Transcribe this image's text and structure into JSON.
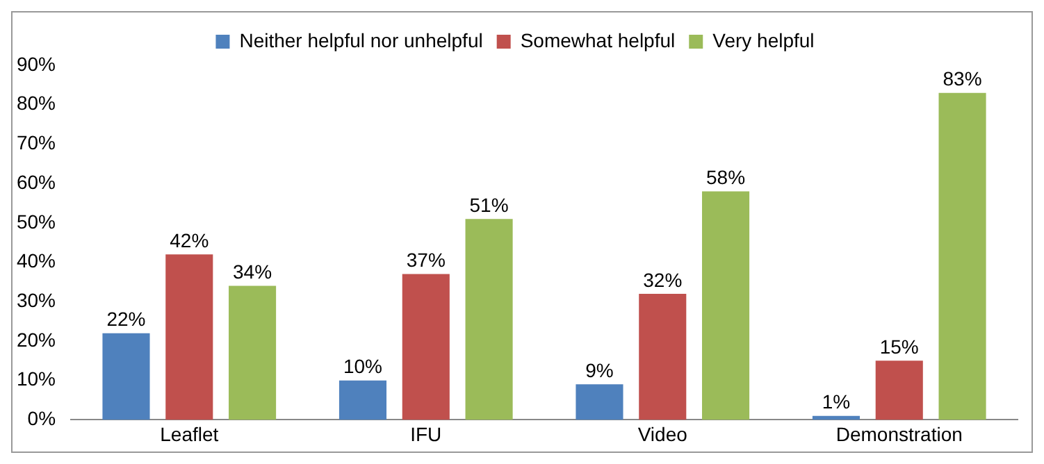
{
  "chart_data": {
    "type": "bar",
    "categories": [
      "Leaflet",
      "IFU",
      "Video",
      "Demonstration"
    ],
    "series": [
      {
        "name": "Neither helpful nor unhelpful",
        "color": "#4f81bd",
        "values": [
          22,
          10,
          9,
          1
        ],
        "value_labels": [
          "22%",
          "10%",
          "9%",
          "1%"
        ]
      },
      {
        "name": "Somewhat helpful",
        "color": "#c0504d",
        "values": [
          42,
          37,
          32,
          15
        ],
        "value_labels": [
          "42%",
          "37%",
          "32%",
          "15%"
        ]
      },
      {
        "name": "Very helpful",
        "color": "#9bbb59",
        "values": [
          34,
          51,
          58,
          83
        ],
        "value_labels": [
          "34%",
          "51%",
          "58%",
          "83%"
        ]
      }
    ],
    "ylim": [
      0,
      90
    ],
    "yticks": [
      {
        "value": 0,
        "label": "0%"
      },
      {
        "value": 10,
        "label": "10%"
      },
      {
        "value": 20,
        "label": "20%"
      },
      {
        "value": 30,
        "label": "30%"
      },
      {
        "value": 40,
        "label": "40%"
      },
      {
        "value": 50,
        "label": "50%"
      },
      {
        "value": 60,
        "label": "60%"
      },
      {
        "value": 70,
        "label": "70%"
      },
      {
        "value": 80,
        "label": "80%"
      },
      {
        "value": 90,
        "label": "90%"
      }
    ],
    "grid": false,
    "legend": "top"
  }
}
